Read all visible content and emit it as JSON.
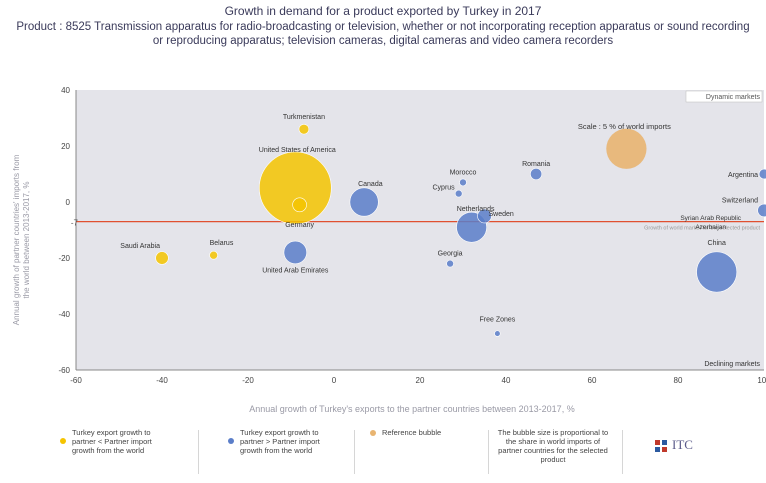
{
  "title": "Growth in demand for a product exported by Turkey in 2017",
  "subtitle": "Product : 8525 Transmission apparatus for radio-broadcasting or television, whether or not incorporating reception apparatus or sound recording or reproducing apparatus; television cameras, digital cameras and video camera recorders",
  "colors": {
    "yellow": "#f5c400",
    "blue": "#5b7ec9",
    "orange": "#e8b471",
    "grid_bg": "#e4e4ea",
    "line": "#e05030"
  },
  "chart_data": {
    "type": "scatter",
    "xlabel": "Annual growth of Turkey's exports to the partner countries between 2013-2017, %",
    "ylabel": "Annual growth of partner countries' imports from the world between 2013-2017, %",
    "xlim": [
      -60,
      100
    ],
    "ylim": [
      -60,
      40
    ],
    "x_ticks": [
      -60,
      -40,
      -20,
      0,
      20,
      40,
      60,
      80,
      100
    ],
    "y_ticks": [
      -60,
      -40,
      -20,
      0,
      20,
      40
    ],
    "reference_line": {
      "y": -7,
      "label": "Growth of world market for the selected product"
    },
    "corner_labels": {
      "top_right": "Dynamic markets",
      "bottom_right": "Declining markets"
    },
    "scale_label": "Scale : 5 % of world imports",
    "points": [
      {
        "label": "Turkmenistan",
        "x": -7,
        "y": 26,
        "size": 0.3,
        "group": "yellow"
      },
      {
        "label": "United States of America",
        "x": -9,
        "y": 5,
        "size": 16,
        "group": "yellow"
      },
      {
        "label": "Germany",
        "x": -8,
        "y": -1,
        "size": 0.6,
        "group": "yellow"
      },
      {
        "label": "Saudi Arabia",
        "x": -40,
        "y": -20,
        "size": 0.5,
        "group": "yellow"
      },
      {
        "label": "Belarus",
        "x": -28,
        "y": -19,
        "size": 0.2,
        "group": "yellow"
      },
      {
        "label": "United Arab Emirates",
        "x": -9,
        "y": -18,
        "size": 1.6,
        "group": "blue"
      },
      {
        "label": "Canada",
        "x": 7,
        "y": 0,
        "size": 2.5,
        "group": "blue"
      },
      {
        "label": "Morocco",
        "x": 30,
        "y": 7,
        "size": 0.15,
        "group": "blue"
      },
      {
        "label": "Cyprus",
        "x": 29,
        "y": 3,
        "size": 0.15,
        "group": "blue"
      },
      {
        "label": "Netherlands",
        "x": 32,
        "y": -9,
        "size": 2.8,
        "group": "blue"
      },
      {
        "label": "Sweden",
        "x": 35,
        "y": -5,
        "size": 0.6,
        "group": "blue"
      },
      {
        "label": "Romania",
        "x": 47,
        "y": 10,
        "size": 0.4,
        "group": "blue"
      },
      {
        "label": "Georgia",
        "x": 27,
        "y": -22,
        "size": 0.15,
        "group": "blue"
      },
      {
        "label": "Free Zones",
        "x": 38,
        "y": -47,
        "size": 0.1,
        "group": "blue"
      },
      {
        "label": "Argentina",
        "x": 100,
        "y": 10,
        "size": 0.3,
        "group": "blue"
      },
      {
        "label": "Switzerland",
        "x": 100,
        "y": -3,
        "size": 0.5,
        "group": "blue"
      },
      {
        "label": "China",
        "x": 89,
        "y": -25,
        "size": 5,
        "group": "blue"
      }
    ],
    "scale_bubble": {
      "x": 68,
      "y": 19,
      "size": 5
    },
    "extra_labels": [
      "Syrian Arab Republic",
      "Azerbaijan"
    ]
  },
  "legend": {
    "item1": "Turkey export growth to partner < Partner import growth from the world",
    "item2": "Turkey export growth to partner > Partner import growth from the world",
    "item3": "Reference bubble",
    "item4": "The bubble size is proportional to the share in world imports of partner countries for the selected product"
  },
  "logo": "ITC"
}
